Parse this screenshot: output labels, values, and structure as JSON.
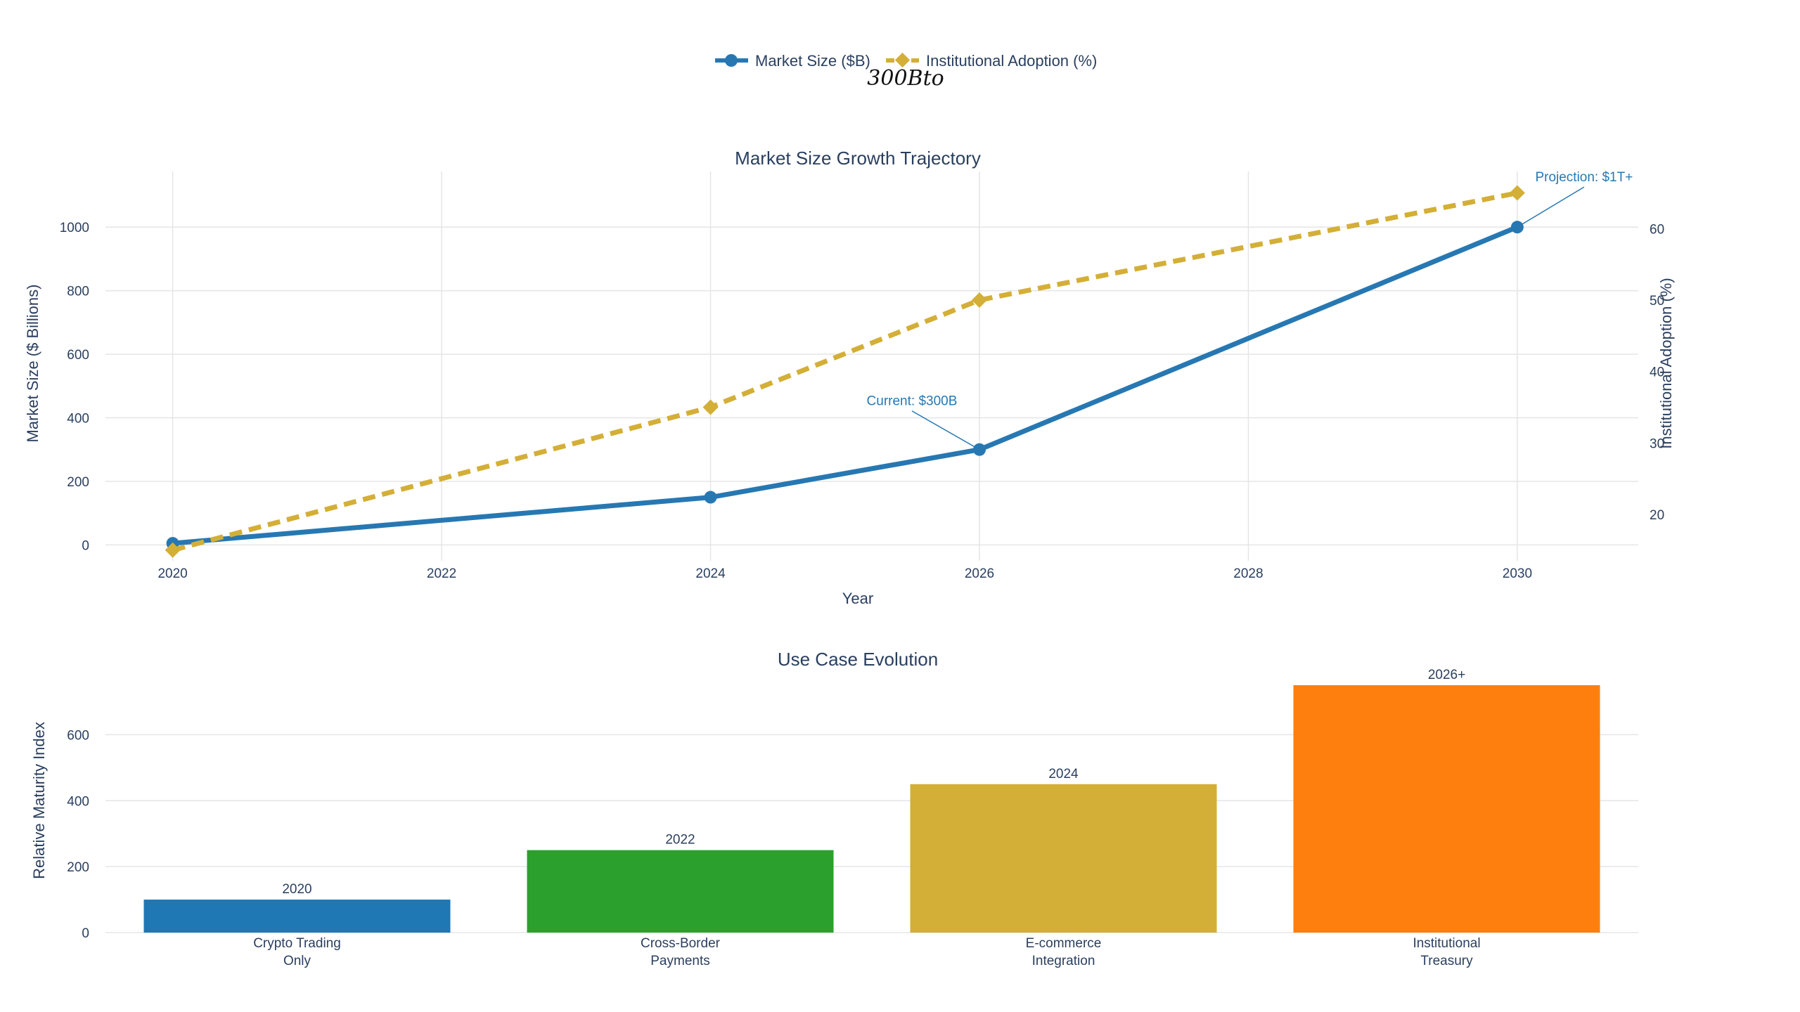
{
  "legend": {
    "items": [
      {
        "label": "Market Size ($B)",
        "color": "#2778b2",
        "marker": "circle",
        "dash": "solid"
      },
      {
        "label": "Institutional Adoption (%)",
        "color": "#d4af37",
        "marker": "diamond",
        "dash": "dash"
      }
    ]
  },
  "stray_formula": "300Bto",
  "chart_data": [
    {
      "type": "line",
      "title": "Market Size Growth Trajectory",
      "xlabel": "Year",
      "ylabel": "Market Size ($ Billions)",
      "y2label": "Institutional Adoption (%)",
      "xlim": [
        2019.5,
        2030.9
      ],
      "ylim": [
        -50,
        1175
      ],
      "y2lim": [
        13.5,
        68
      ],
      "xticks": [
        2020,
        2022,
        2024,
        2026,
        2028,
        2030
      ],
      "yticks": [
        0,
        200,
        400,
        600,
        800,
        1000
      ],
      "y2ticks": [
        20,
        30,
        40,
        50,
        60
      ],
      "grid": true,
      "legend_position": "top-center",
      "series": [
        {
          "name": "Market Size ($B)",
          "axis": "y",
          "color": "#2778b2",
          "marker": "circle",
          "dash": "solid",
          "x": [
            2020,
            2024,
            2026,
            2030
          ],
          "y": [
            5,
            150,
            300,
            1000
          ]
        },
        {
          "name": "Institutional Adoption (%)",
          "axis": "y2",
          "color": "#d4af37",
          "marker": "diamond",
          "dash": "dash",
          "x": [
            2020,
            2024,
            2026,
            2030
          ],
          "y": [
            15,
            35,
            50,
            65
          ]
        }
      ],
      "annotations": [
        {
          "text": "Current: $300B",
          "x": 2026,
          "y": 300,
          "color": "#2778b2"
        },
        {
          "text": "Projection: $1T+",
          "x": 2030,
          "y": 1000,
          "color": "#2778b2"
        }
      ]
    },
    {
      "type": "bar",
      "title": "Use Case Evolution",
      "xlabel": "",
      "ylabel": "Relative Maturity Index",
      "ylim": [
        0,
        750
      ],
      "yticks": [
        0,
        200,
        400,
        600
      ],
      "grid": true,
      "categories": [
        [
          "Crypto Trading",
          "Only"
        ],
        [
          "Cross-Border",
          "Payments"
        ],
        [
          "E-commerce",
          "Integration"
        ],
        [
          "Institutional",
          "Treasury"
        ]
      ],
      "values": [
        100,
        250,
        450,
        750
      ],
      "labels": [
        "2020",
        "2022",
        "2024",
        "2026+"
      ],
      "colors": [
        "#1f77b4",
        "#2ca02c",
        "#d4af37",
        "#ff7f0e"
      ]
    }
  ]
}
